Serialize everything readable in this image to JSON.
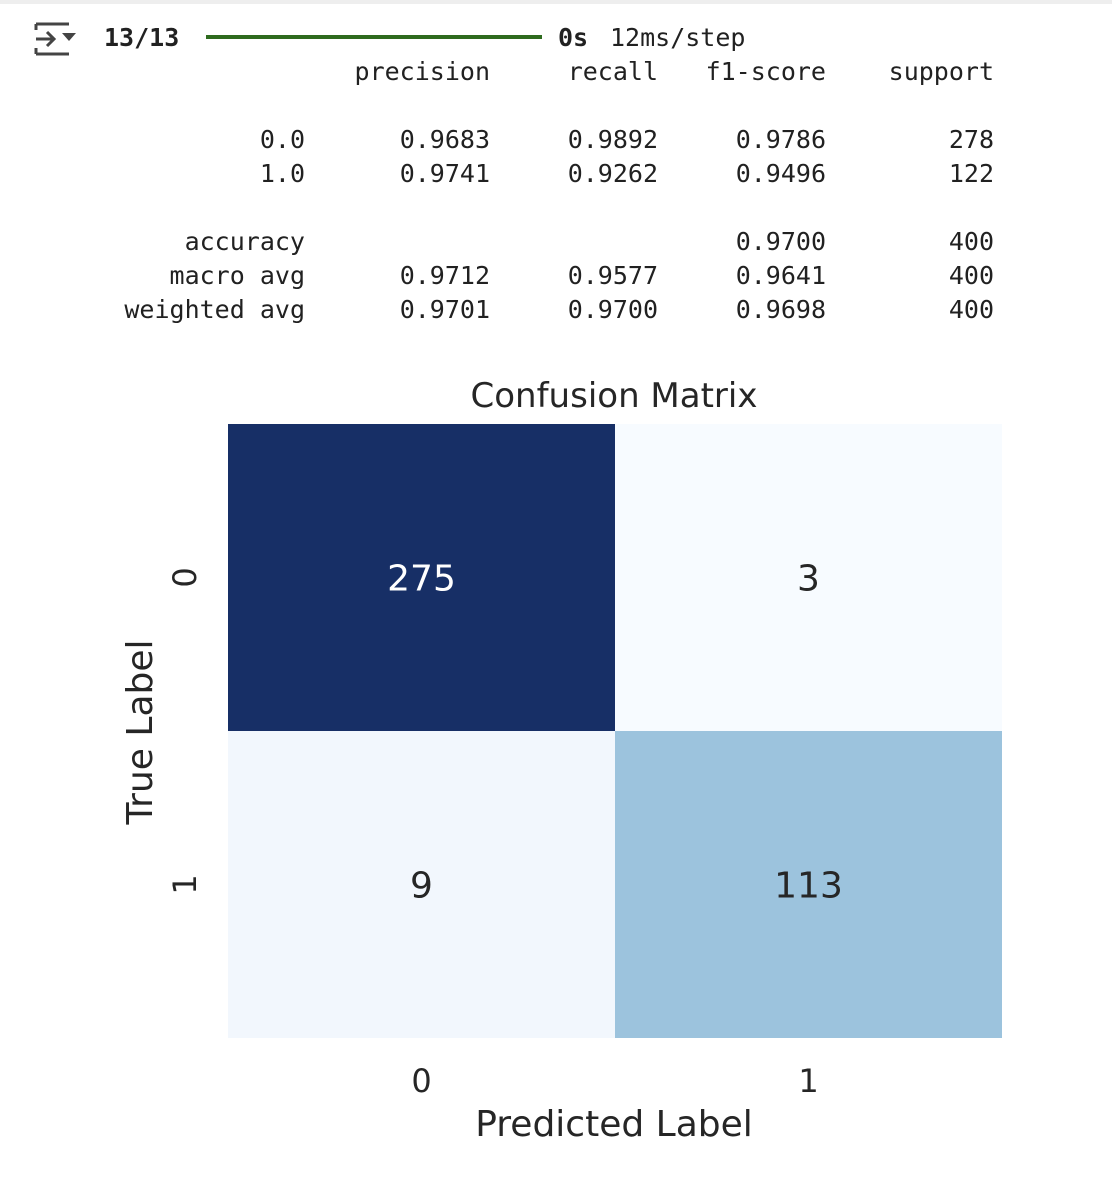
{
  "progress": {
    "steps": "13/13",
    "fraction": 1.0,
    "elapsed": "0s",
    "per_step": "12ms/step",
    "color": "#2e6b1e"
  },
  "report": {
    "headers": [
      "precision",
      "recall",
      "f1-score",
      "support"
    ],
    "rows": [
      {
        "label": "0.0",
        "precision": "0.9683",
        "recall": "0.9892",
        "f1": "0.9786",
        "support": "278"
      },
      {
        "label": "1.0",
        "precision": "0.9741",
        "recall": "0.9262",
        "f1": "0.9496",
        "support": "122"
      }
    ],
    "summary": [
      {
        "label": "accuracy",
        "precision": "",
        "recall": "",
        "f1": "0.9700",
        "support": "400"
      },
      {
        "label": "macro avg",
        "precision": "0.9712",
        "recall": "0.9577",
        "f1": "0.9641",
        "support": "400"
      },
      {
        "label": "weighted avg",
        "precision": "0.9701",
        "recall": "0.9700",
        "f1": "0.9698",
        "support": "400"
      }
    ]
  },
  "chart_data": {
    "type": "heatmap",
    "title": "Confusion Matrix",
    "xlabel": "Predicted Label",
    "ylabel": "True Label",
    "x_categories": [
      "0",
      "1"
    ],
    "y_categories": [
      "0",
      "1"
    ],
    "values": [
      [
        275,
        3
      ],
      [
        9,
        113
      ]
    ],
    "colormap": "Blues",
    "cell_colors": [
      [
        "#172f66",
        "#f7fbff"
      ],
      [
        "#f2f7fd",
        "#9cc3dd"
      ]
    ],
    "text_colors": [
      [
        "#ffffff",
        "#262626"
      ],
      [
        "#262626",
        "#262626"
      ]
    ],
    "colorbar": false
  }
}
